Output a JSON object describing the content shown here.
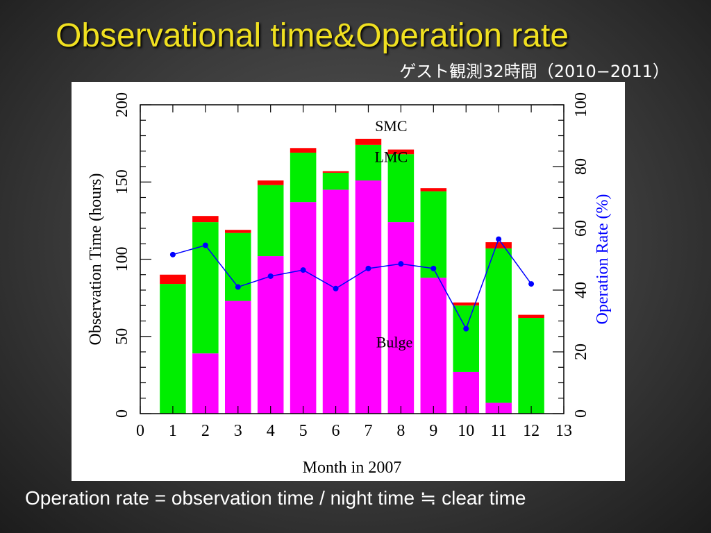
{
  "slide": {
    "title": "Observational time&Operation rate",
    "subtitle": "ゲスト観測32時間（2010−2011）",
    "footer": "Operation rate = observation time / night time  ≒ clear time"
  },
  "chart_data": {
    "type": "bar",
    "stacked": true,
    "xlabel": "Month in 2007",
    "ylabel": "Observation Time (hours)",
    "y2label": "Operation Rate (%)",
    "xlim": [
      0,
      13
    ],
    "ylim": [
      0,
      200
    ],
    "y2lim": [
      0,
      100
    ],
    "x_ticks": [
      0,
      1,
      2,
      3,
      4,
      5,
      6,
      7,
      8,
      9,
      10,
      11,
      12,
      13
    ],
    "y_ticks": [
      0,
      50,
      100,
      150,
      200
    ],
    "y2_ticks": [
      0,
      20,
      40,
      60,
      80,
      100
    ],
    "categories": [
      1,
      2,
      3,
      4,
      5,
      6,
      7,
      8,
      9,
      10,
      11,
      12
    ],
    "series": [
      {
        "name": "Bulge",
        "color": "#ff00ff",
        "values": [
          0,
          39,
          73,
          102,
          137,
          145,
          151,
          124,
          88,
          27,
          7,
          0
        ]
      },
      {
        "name": "LMC",
        "color": "#00ee00",
        "values": [
          84,
          85,
          44,
          46,
          32,
          11,
          23,
          44,
          56,
          43,
          100,
          62
        ]
      },
      {
        "name": "SMC",
        "color": "#ff0000",
        "values": [
          6,
          4,
          2,
          3,
          3,
          1,
          4,
          3,
          2,
          2,
          4,
          2
        ]
      }
    ],
    "operation_rate": {
      "name": "Operation Rate",
      "color": "#0000ff",
      "values": [
        51.5,
        54.5,
        41,
        44.5,
        46.5,
        40.5,
        47,
        48.5,
        47,
        27.5,
        56.5,
        42
      ]
    },
    "annotations": [
      {
        "text": "SMC",
        "x": 7.7,
        "y": 183
      },
      {
        "text": "LMC",
        "x": 7.7,
        "y": 163
      },
      {
        "text": "Bulge",
        "x": 7.8,
        "y": 43
      }
    ]
  }
}
